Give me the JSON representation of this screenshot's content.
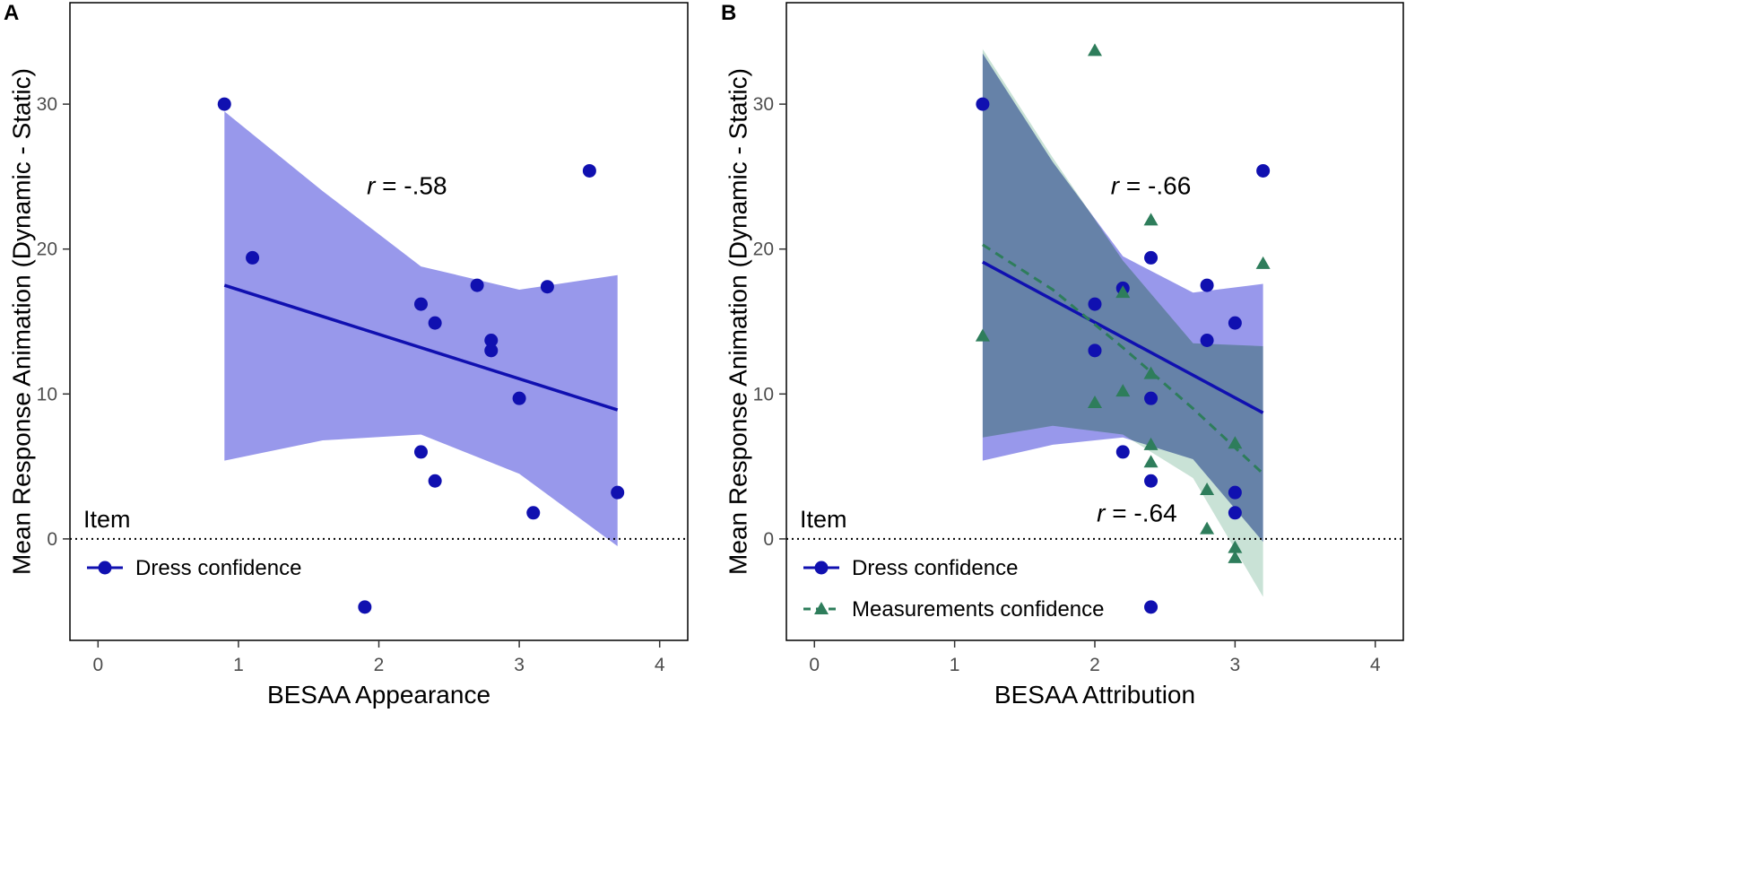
{
  "chart_data": [
    {
      "type": "scatter",
      "panel_label": "A",
      "xlabel": "BESAA Appearance",
      "ylabel": "Mean Response Animation (Dynamic - Static)",
      "xlim": [
        -0.2,
        4.2
      ],
      "ylim": [
        -7,
        37
      ],
      "xticks": [
        "0",
        "1",
        "2",
        "3",
        "4"
      ],
      "yticks": [
        "0",
        "10",
        "20",
        "30"
      ],
      "grid": false,
      "reference_line_y": 0,
      "annotations": [
        {
          "text_italic": "r",
          "text": " = -.58",
          "x": 2.2,
          "y": 23.8
        }
      ],
      "legend": {
        "title": "Item",
        "position": "bottom-left",
        "entries": [
          "Dress confidence"
        ]
      },
      "series": [
        {
          "name": "Dress confidence",
          "marker": "circle",
          "color": "#1010b0",
          "line_style": "solid",
          "ribbon_color": "#7b7be6",
          "points": [
            {
              "x": 0.9,
              "y": 30
            },
            {
              "x": 1.1,
              "y": 19.4
            },
            {
              "x": 1.9,
              "y": -4.7
            },
            {
              "x": 2.3,
              "y": 16.2
            },
            {
              "x": 2.3,
              "y": 6
            },
            {
              "x": 2.4,
              "y": 14.9
            },
            {
              "x": 2.4,
              "y": 4
            },
            {
              "x": 2.7,
              "y": 17.5
            },
            {
              "x": 2.8,
              "y": 13.7
            },
            {
              "x": 2.8,
              "y": 13
            },
            {
              "x": 3.0,
              "y": 9.7
            },
            {
              "x": 3.1,
              "y": 1.8
            },
            {
              "x": 3.2,
              "y": 17.4
            },
            {
              "x": 3.5,
              "y": 25.4
            },
            {
              "x": 3.7,
              "y": 3.2
            }
          ],
          "fit": {
            "x": [
              0.9,
              3.7
            ],
            "y": [
              17.5,
              8.9
            ]
          },
          "ribbon": {
            "x": [
              0.9,
              1.6,
              2.3,
              3.0,
              3.7
            ],
            "upper": [
              29.5,
              24.0,
              18.8,
              17.2,
              18.2
            ],
            "lower": [
              5.4,
              6.8,
              7.2,
              4.5,
              -0.5
            ]
          }
        }
      ]
    },
    {
      "type": "scatter",
      "panel_label": "B",
      "xlabel": "BESAA Attribution",
      "ylabel": "Mean Response Animation (Dynamic - Static)",
      "xlim": [
        -0.2,
        4.2
      ],
      "ylim": [
        -7,
        37
      ],
      "xticks": [
        "0",
        "1",
        "2",
        "3",
        "4"
      ],
      "yticks": [
        "0",
        "10",
        "20",
        "30"
      ],
      "grid": false,
      "reference_line_y": 0,
      "annotations": [
        {
          "text_italic": "r",
          "text": " = -.66",
          "x": 2.4,
          "y": 23.8
        },
        {
          "text_italic": "r",
          "text": " = -.64",
          "x": 2.3,
          "y": 1.2
        }
      ],
      "legend": {
        "title": "Item",
        "position": "bottom-left",
        "entries": [
          "Dress confidence",
          "Measurements confidence"
        ]
      },
      "series": [
        {
          "name": "Dress confidence",
          "marker": "circle",
          "color": "#1010b0",
          "line_style": "solid",
          "ribbon_color": "#7b7be6",
          "points": [
            {
              "x": 1.2,
              "y": 30
            },
            {
              "x": 2.0,
              "y": 16.2
            },
            {
              "x": 2.0,
              "y": 13
            },
            {
              "x": 2.2,
              "y": 17.3
            },
            {
              "x": 2.2,
              "y": 6
            },
            {
              "x": 2.4,
              "y": 19.4
            },
            {
              "x": 2.4,
              "y": 9.7
            },
            {
              "x": 2.4,
              "y": 4
            },
            {
              "x": 2.4,
              "y": -4.7
            },
            {
              "x": 2.8,
              "y": 17.5
            },
            {
              "x": 2.8,
              "y": 13.7
            },
            {
              "x": 3.0,
              "y": 14.9
            },
            {
              "x": 3.0,
              "y": 3.2
            },
            {
              "x": 3.0,
              "y": 1.8
            },
            {
              "x": 3.2,
              "y": 25.4
            }
          ],
          "fit": {
            "x": [
              1.2,
              3.2
            ],
            "y": [
              19.1,
              8.7
            ]
          },
          "ribbon": {
            "x": [
              1.2,
              1.7,
              2.2,
              2.7,
              3.2
            ],
            "upper": [
              33.5,
              26.0,
              19.5,
              17.0,
              17.6
            ],
            "lower": [
              5.4,
              6.5,
              7.0,
              5.5,
              -0.2
            ]
          }
        },
        {
          "name": "Measurements confidence",
          "marker": "triangle",
          "color": "#2e7d5b",
          "line_style": "dashed",
          "ribbon_color": "#9ccbb5",
          "points": [
            {
              "x": 1.2,
              "y": 14
            },
            {
              "x": 2.0,
              "y": 33.7
            },
            {
              "x": 2.0,
              "y": 9.4
            },
            {
              "x": 2.2,
              "y": 17
            },
            {
              "x": 2.2,
              "y": 10.2
            },
            {
              "x": 2.4,
              "y": 22
            },
            {
              "x": 2.4,
              "y": 11.4
            },
            {
              "x": 2.4,
              "y": 6.5
            },
            {
              "x": 2.4,
              "y": 5.3
            },
            {
              "x": 2.8,
              "y": 3.4
            },
            {
              "x": 2.8,
              "y": 0.7
            },
            {
              "x": 3.0,
              "y": 6.6
            },
            {
              "x": 3.0,
              "y": -0.6
            },
            {
              "x": 3.0,
              "y": -1.3
            },
            {
              "x": 3.2,
              "y": 19
            }
          ],
          "fit": {
            "x": [
              1.2,
              1.7,
              2.2,
              2.7,
              3.2
            ],
            "y": [
              20.3,
              17.2,
              13.2,
              9.0,
              4.5
            ]
          },
          "ribbon": {
            "x": [
              1.2,
              1.7,
              2.2,
              2.7,
              3.2
            ],
            "upper": [
              33.8,
              26.3,
              19.2,
              13.5,
              13.3
            ],
            "lower": [
              7.0,
              7.8,
              7.2,
              4.2,
              -4.0
            ]
          }
        }
      ]
    }
  ]
}
